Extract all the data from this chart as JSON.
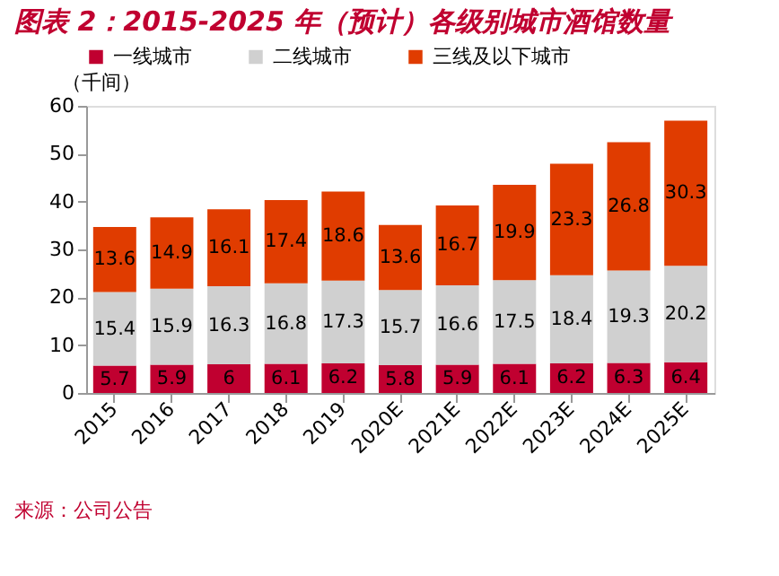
{
  "chart_data": {
    "type": "bar",
    "title": "图表 2：2015-2025 年（预计）各级别城市酒馆数量",
    "ylabel": "（千间）",
    "categories": [
      "2015",
      "2016",
      "2017",
      "2018",
      "2019",
      "2020E",
      "2021E",
      "2022E",
      "2023E",
      "2024E",
      "2025E"
    ],
    "series": [
      {
        "name": "一线城市",
        "color": "#c00030",
        "values": [
          5.7,
          5.9,
          6,
          6.1,
          6.2,
          5.8,
          5.9,
          6.1,
          6.2,
          6.3,
          6.4
        ]
      },
      {
        "name": "二线城市",
        "color": "#d0d0d0",
        "values": [
          15.4,
          15.9,
          16.3,
          16.8,
          17.3,
          15.7,
          16.6,
          17.5,
          18.4,
          19.3,
          20.2
        ]
      },
      {
        "name": "三线及以下城市",
        "color": "#e03c00",
        "values": [
          13.6,
          14.9,
          16.1,
          17.4,
          18.6,
          13.6,
          16.7,
          19.9,
          23.3,
          26.8,
          30.3
        ]
      }
    ],
    "stacked": true,
    "data_labels": true,
    "ylim": [
      0,
      60
    ],
    "yticks": [
      0,
      10,
      20,
      30,
      40,
      50,
      60
    ],
    "grid": false,
    "legend": "top",
    "annotations": [
      "来源：公司公告"
    ]
  }
}
